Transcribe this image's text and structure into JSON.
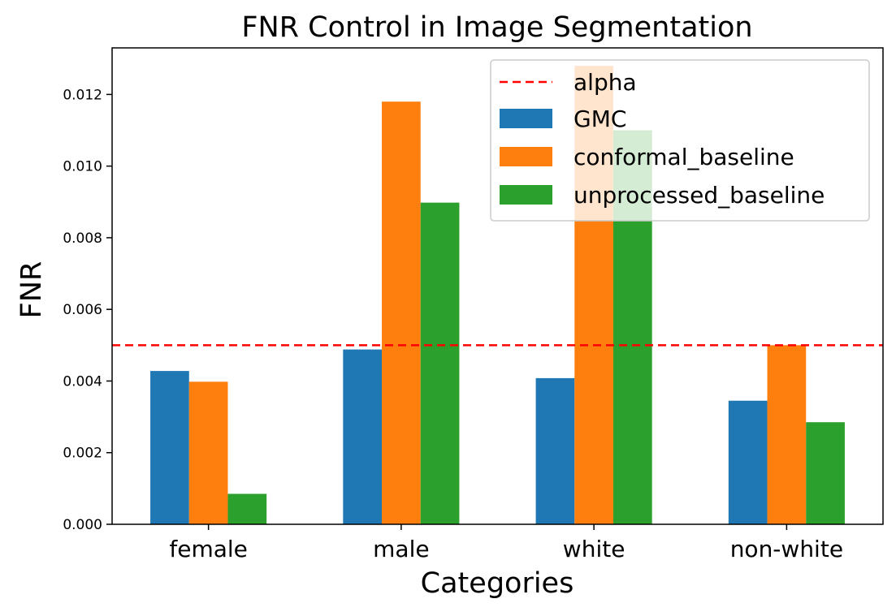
{
  "chart_data": {
    "type": "bar",
    "title": "FNR Control in Image Segmentation",
    "xlabel": "Categories",
    "ylabel": "FNR",
    "categories": [
      "female",
      "male",
      "white",
      "non-white"
    ],
    "series": [
      {
        "name": "GMC",
        "color": "#1f77b4",
        "values": [
          0.00428,
          0.00488,
          0.00408,
          0.00345
        ]
      },
      {
        "name": "conformal_baseline",
        "color": "#ff7f0e",
        "values": [
          0.00398,
          0.0118,
          0.0128,
          0.005
        ]
      },
      {
        "name": "unprocessed_baseline",
        "color": "#2ca02c",
        "values": [
          0.00085,
          0.00898,
          0.011,
          0.00285
        ]
      }
    ],
    "reference_line": {
      "name": "alpha",
      "value": 0.005,
      "color": "#ff0000",
      "style": "dashed"
    },
    "ylim": [
      0,
      0.0133
    ],
    "yticks": [
      "0.000",
      "0.002",
      "0.004",
      "0.006",
      "0.008",
      "0.010",
      "0.012"
    ],
    "legend_position": "top-right",
    "grid": false
  }
}
